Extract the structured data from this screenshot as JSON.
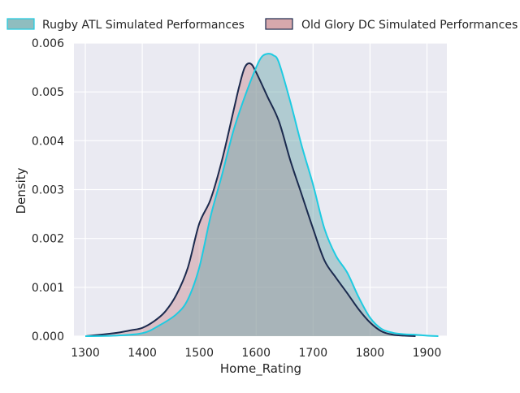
{
  "chart_data": {
    "type": "area",
    "xlabel": "Home_Rating",
    "ylabel": "Density",
    "xlim": [
      1280,
      1935
    ],
    "ylim": [
      0,
      0.006
    ],
    "x_ticks": [
      1300,
      1400,
      1500,
      1600,
      1700,
      1800,
      1900
    ],
    "y_ticks": [
      0.0,
      0.001,
      0.002,
      0.003,
      0.004,
      0.005,
      0.006
    ],
    "x_tick_labels": [
      "1300",
      "1400",
      "1500",
      "1600",
      "1700",
      "1800",
      "1900"
    ],
    "y_tick_labels": [
      "0.000",
      "0.001",
      "0.002",
      "0.003",
      "0.004",
      "0.005",
      "0.006"
    ],
    "grid": true,
    "legend_position": "top",
    "series": [
      {
        "name": "Rugby ATL Simulated Performances",
        "fill_color": "#6aa7a9",
        "line_color": "#1ecbe1",
        "x": [
          1300,
          1350,
          1400,
          1430,
          1460,
          1480,
          1500,
          1520,
          1540,
          1560,
          1580,
          1600,
          1610,
          1620,
          1630,
          1640,
          1660,
          1680,
          1700,
          1720,
          1740,
          1760,
          1780,
          1800,
          1820,
          1840,
          1860,
          1880,
          1900,
          1920
        ],
        "values": [
          0.0,
          1e-05,
          6e-05,
          0.00022,
          0.00045,
          0.00075,
          0.0014,
          0.00245,
          0.0033,
          0.0042,
          0.0049,
          0.0055,
          0.00572,
          0.00578,
          0.00575,
          0.0056,
          0.0048,
          0.0039,
          0.0031,
          0.0022,
          0.00165,
          0.0013,
          0.0008,
          0.00038,
          0.00015,
          7e-05,
          4e-05,
          3e-05,
          1e-05,
          0.0
        ]
      },
      {
        "name": "Old Glory DC Simulated Performances",
        "fill_color": "#c98b90",
        "line_color": "#1b2a4e",
        "x": [
          1300,
          1350,
          1380,
          1400,
          1420,
          1440,
          1460,
          1480,
          1500,
          1520,
          1540,
          1560,
          1570,
          1580,
          1590,
          1600,
          1620,
          1640,
          1660,
          1680,
          1700,
          1720,
          1740,
          1760,
          1780,
          1800,
          1820,
          1840,
          1860,
          1880
        ],
        "values": [
          0.0,
          6e-05,
          0.00012,
          0.00017,
          0.0003,
          0.0005,
          0.00085,
          0.0014,
          0.0023,
          0.0028,
          0.0036,
          0.0046,
          0.0051,
          0.0055,
          0.00558,
          0.0054,
          0.0049,
          0.0044,
          0.0036,
          0.0029,
          0.0022,
          0.00155,
          0.0012,
          0.00088,
          0.00055,
          0.00028,
          0.0001,
          3e-05,
          1e-05,
          0.0
        ]
      }
    ]
  }
}
